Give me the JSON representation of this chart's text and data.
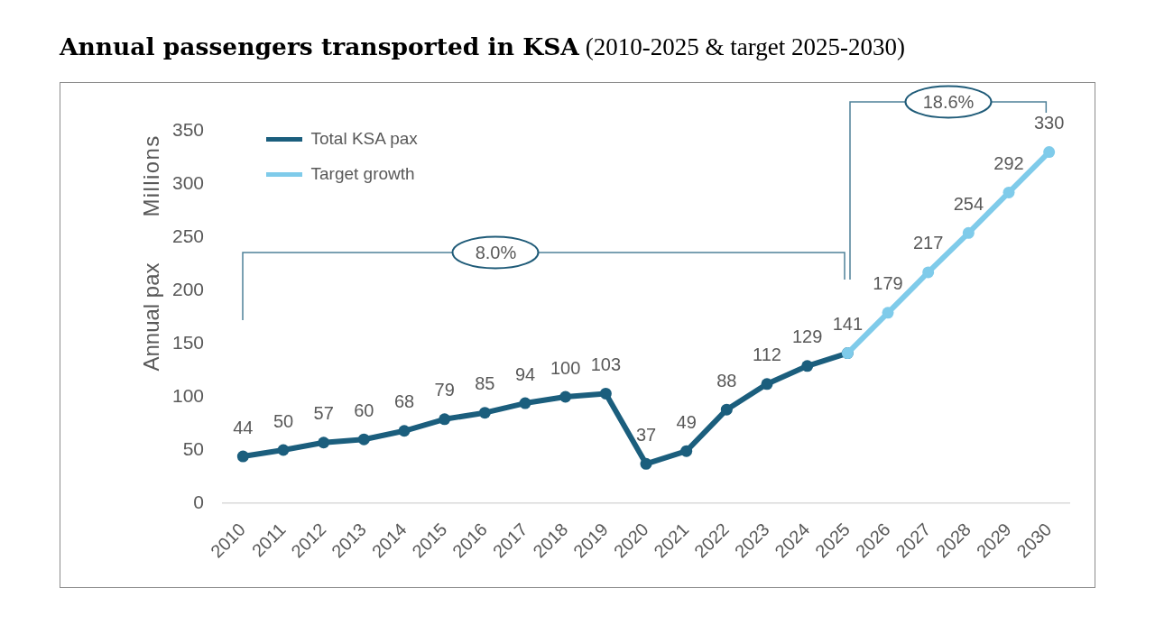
{
  "chart_data": {
    "type": "line",
    "title": "Annual passengers transported in KSA",
    "subtitle": "(2010-2025 & target 2025-2030)",
    "ylabel": "Annual pax",
    "annotations": [
      "8.0%",
      "18.6%",
      "Millions"
    ],
    "categories": [
      "2010",
      "2011",
      "2012",
      "2013",
      "2014",
      "2015",
      "2016",
      "2017",
      "2018",
      "2019",
      "2020",
      "2021",
      "2022",
      "2023",
      "2024",
      "2025",
      "2026",
      "2027",
      "2028",
      "2029",
      "2030"
    ],
    "series": [
      {
        "name": "Total KSA pax",
        "color": "#1b5e7d",
        "values": [
          44,
          50,
          57,
          60,
          68,
          79,
          85,
          94,
          100,
          103,
          37,
          49,
          88,
          112,
          129,
          141,
          null,
          null,
          null,
          null,
          null
        ],
        "value_labels": [
          "44",
          "50",
          "57",
          "60",
          "68",
          "79",
          "85",
          "94",
          "100",
          "103",
          "37",
          "49",
          "88",
          "112",
          "129",
          "141",
          null,
          null,
          null,
          null,
          null
        ]
      },
      {
        "name": "Target growth",
        "color": "#7fcbea",
        "values": [
          null,
          null,
          null,
          null,
          null,
          null,
          null,
          null,
          null,
          null,
          null,
          null,
          null,
          null,
          null,
          141,
          179,
          217,
          254,
          292,
          330
        ],
        "value_labels": [
          null,
          null,
          null,
          null,
          null,
          null,
          null,
          null,
          null,
          null,
          null,
          null,
          null,
          null,
          null,
          null,
          "179",
          "217",
          "254",
          "292",
          "330"
        ]
      }
    ],
    "ylim": [
      0,
      350
    ],
    "yticks": [
      0,
      50,
      100,
      150,
      200,
      250,
      300,
      350
    ],
    "legend": "top left",
    "marker": "circle",
    "line_style": "solid"
  }
}
